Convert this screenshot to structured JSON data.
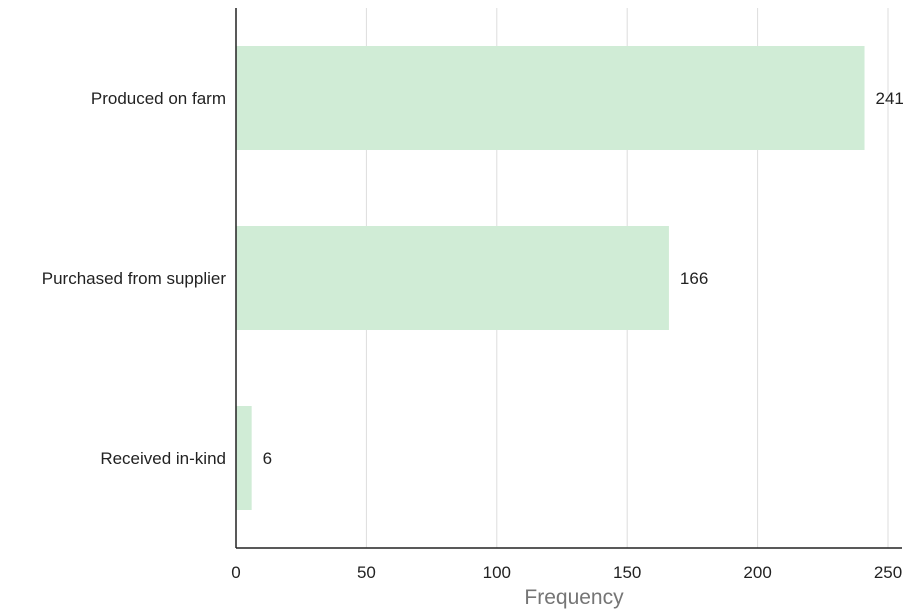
{
  "chart_data": {
    "type": "bar",
    "orientation": "horizontal",
    "categories": [
      "Produced on farm",
      "Purchased from supplier",
      "Received in-kind"
    ],
    "values": [
      241,
      166,
      6
    ],
    "data_labels": [
      "241",
      "166",
      "6"
    ],
    "xlabel": "Frequency",
    "ylabel": "",
    "xlim": [
      0,
      250
    ],
    "x_ticks": [
      0,
      50,
      100,
      150,
      200,
      250
    ],
    "x_tick_labels": [
      "0",
      "50",
      "100",
      "150",
      "200",
      "250"
    ],
    "grid": "vertical",
    "bar_color": "#d0ecd6",
    "grid_color": "#dddddd",
    "axis_color": "#222222"
  }
}
